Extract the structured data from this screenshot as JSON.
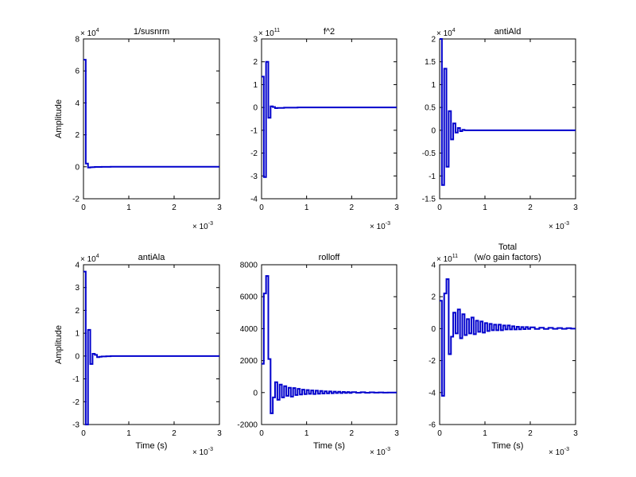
{
  "figure": {
    "line_color": "#0000cc",
    "background": "#ffffff",
    "axes_color": "#000000"
  },
  "chart_data": [
    {
      "type": "line",
      "title": "1/susnrm",
      "title_lines": [],
      "xlabel": "",
      "ylabel": "Amplitude",
      "xlim": [
        0,
        3
      ],
      "ylim": [
        -2,
        8
      ],
      "xticks": [
        0,
        1,
        2,
        3
      ],
      "yticks": [
        -2,
        0,
        2,
        4,
        6,
        8
      ],
      "x_exponent": "-3",
      "y_exponent": "4",
      "step": true,
      "x": [
        0,
        0.05,
        0.1,
        0.15,
        0.2,
        0.25,
        0.3,
        0.4,
        0.6,
        0.8,
        1.0,
        1.2,
        1.4,
        1.6,
        1.65,
        3.0
      ],
      "y": [
        6.7,
        0.2,
        -0.05,
        -0.03,
        -0.02,
        -0.01,
        -0.01,
        -0.005,
        0,
        0,
        0,
        0,
        0,
        0,
        0,
        0
      ]
    },
    {
      "type": "line",
      "title": "f^2",
      "title_lines": [],
      "xlabel": "",
      "ylabel": "",
      "xlim": [
        0,
        3
      ],
      "ylim": [
        -4,
        3
      ],
      "xticks": [
        0,
        1,
        2,
        3
      ],
      "yticks": [
        -4,
        -3,
        -2,
        -1,
        0,
        1,
        2,
        3
      ],
      "x_exponent": "-3",
      "y_exponent": "11",
      "step": true,
      "x": [
        0,
        0.05,
        0.1,
        0.15,
        0.2,
        0.25,
        0.3,
        0.35,
        0.4,
        0.5,
        0.6,
        0.8,
        1.0,
        1.25,
        3.0
      ],
      "y": [
        1.35,
        -3.05,
        2.0,
        -0.45,
        0.05,
        0.02,
        -0.03,
        -0.02,
        -0.02,
        -0.01,
        -0.01,
        0,
        0,
        0,
        0
      ]
    },
    {
      "type": "line",
      "title": "antiAld",
      "title_lines": [],
      "xlabel": "",
      "ylabel": "",
      "xlim": [
        0,
        3
      ],
      "ylim": [
        -1.5,
        2
      ],
      "xticks": [
        0,
        1,
        2,
        3
      ],
      "yticks": [
        -1.5,
        -1,
        -0.5,
        0,
        0.5,
        1,
        1.5,
        2
      ],
      "x_exponent": "-3",
      "y_exponent": "4",
      "step": true,
      "x": [
        0,
        0.05,
        0.1,
        0.15,
        0.2,
        0.25,
        0.3,
        0.35,
        0.4,
        0.45,
        0.5,
        0.55,
        0.6,
        3.0
      ],
      "y": [
        2.0,
        -1.2,
        1.35,
        -0.8,
        0.42,
        -0.2,
        0.15,
        -0.05,
        0.05,
        -0.02,
        0.01,
        0,
        0,
        0
      ]
    },
    {
      "type": "line",
      "title": "antiAla",
      "title_lines": [],
      "xlabel": "Time (s)",
      "ylabel": "Amplitude",
      "xlim": [
        0,
        3
      ],
      "ylim": [
        -3,
        4
      ],
      "xticks": [
        0,
        1,
        2,
        3
      ],
      "yticks": [
        -3,
        -2,
        -1,
        0,
        1,
        2,
        3,
        4
      ],
      "x_exponent": "-3",
      "y_exponent": "4",
      "step": true,
      "x": [
        0,
        0.05,
        0.1,
        0.15,
        0.2,
        0.25,
        0.3,
        0.35,
        0.4,
        0.5,
        0.6,
        0.8,
        1.0,
        3.0
      ],
      "y": [
        3.7,
        -3.0,
        1.15,
        -0.35,
        0.1,
        0.05,
        -0.05,
        -0.03,
        -0.02,
        -0.01,
        0,
        0,
        0,
        0
      ]
    },
    {
      "type": "line",
      "title": "rolloff",
      "title_lines": [],
      "xlabel": "Time (s)",
      "ylabel": "",
      "xlim": [
        0,
        3
      ],
      "ylim": [
        -2000,
        8000
      ],
      "xticks": [
        0,
        1,
        2,
        3
      ],
      "yticks": [
        -2000,
        0,
        2000,
        4000,
        6000,
        8000
      ],
      "x_exponent": "-3",
      "y_exponent": "",
      "step": true,
      "x": [
        0,
        0.05,
        0.1,
        0.15,
        0.2,
        0.25,
        0.3,
        0.35,
        0.4,
        0.45,
        0.5,
        0.55,
        0.6,
        0.65,
        0.7,
        0.75,
        0.8,
        0.85,
        0.9,
        0.95,
        1.0,
        1.05,
        1.1,
        1.15,
        1.2,
        1.25,
        1.3,
        1.35,
        1.4,
        1.45,
        1.5,
        1.55,
        1.6,
        1.65,
        1.7,
        1.75,
        1.8,
        1.85,
        1.9,
        1.95,
        2.0,
        2.1,
        2.2,
        2.3,
        2.4,
        2.5,
        2.6,
        2.7,
        2.8,
        2.9,
        3.0
      ],
      "y": [
        1800,
        6200,
        7300,
        2100,
        -1300,
        -300,
        650,
        -450,
        500,
        -300,
        400,
        -200,
        300,
        -250,
        280,
        -150,
        230,
        -120,
        180,
        -100,
        160,
        -80,
        130,
        -90,
        120,
        -70,
        100,
        -60,
        80,
        -50,
        70,
        -40,
        60,
        -30,
        50,
        -30,
        40,
        -20,
        35,
        -20,
        30,
        -10,
        20,
        -10,
        15,
        -5,
        10,
        -5,
        5,
        0,
        0
      ]
    },
    {
      "type": "line",
      "title": "",
      "title_lines": [
        "Total",
        "(w/o gain factors)"
      ],
      "xlabel": "Time (s)",
      "ylabel": "",
      "xlim": [
        0,
        3
      ],
      "ylim": [
        -6,
        4
      ],
      "xticks": [
        0,
        1,
        2,
        3
      ],
      "yticks": [
        -6,
        -4,
        -2,
        0,
        2,
        4
      ],
      "x_exponent": "-3",
      "y_exponent": "11",
      "step": true,
      "x": [
        0,
        0.05,
        0.1,
        0.15,
        0.2,
        0.25,
        0.3,
        0.35,
        0.4,
        0.45,
        0.5,
        0.55,
        0.6,
        0.65,
        0.7,
        0.75,
        0.8,
        0.85,
        0.9,
        0.95,
        1.0,
        1.05,
        1.1,
        1.15,
        1.2,
        1.25,
        1.3,
        1.35,
        1.4,
        1.45,
        1.5,
        1.55,
        1.6,
        1.65,
        1.7,
        1.75,
        1.8,
        1.85,
        1.9,
        1.95,
        2.0,
        2.1,
        2.2,
        2.3,
        2.4,
        2.5,
        2.6,
        2.7,
        2.8,
        2.9,
        3.0
      ],
      "y": [
        1.75,
        -4.2,
        2.2,
        3.1,
        -1.6,
        -0.5,
        1.0,
        -0.3,
        1.2,
        -0.6,
        0.9,
        -0.4,
        0.6,
        -0.3,
        0.7,
        -0.35,
        0.5,
        -0.2,
        0.45,
        -0.25,
        0.35,
        -0.15,
        0.3,
        -0.1,
        0.25,
        -0.1,
        0.25,
        -0.1,
        0.2,
        -0.05,
        0.2,
        -0.05,
        0.15,
        -0.05,
        0.12,
        -0.04,
        0.1,
        -0.03,
        0.1,
        -0.02,
        0.08,
        -0.02,
        0.06,
        -0.02,
        0.05,
        -0.01,
        0.04,
        -0.01,
        0.03,
        0,
        0
      ]
    }
  ]
}
